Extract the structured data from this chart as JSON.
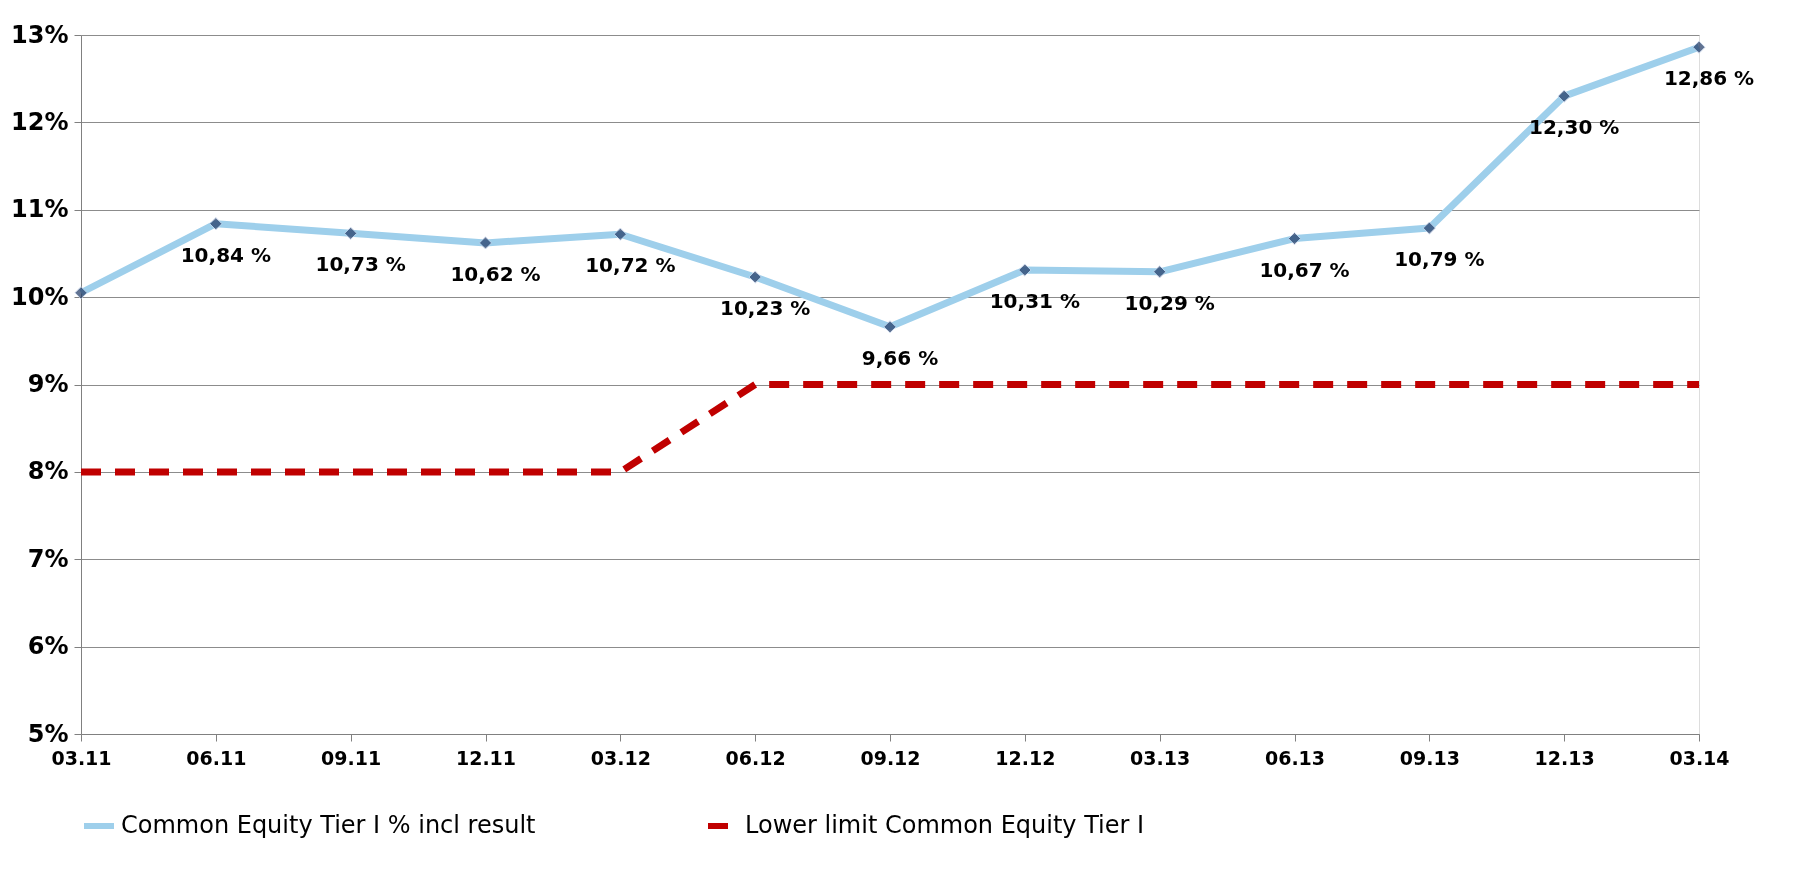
{
  "chart_data": {
    "type": "line",
    "categories": [
      "03.11",
      "06.11",
      "09.11",
      "12.11",
      "03.12",
      "06.12",
      "09.12",
      "12.12",
      "03.13",
      "06.13",
      "09.13",
      "12.13",
      "03.14"
    ],
    "series": [
      {
        "name": "Common Equity Tier I % incl result",
        "color": "#9ecfeb",
        "marker": "diamond",
        "line_style": "solid",
        "values": [
          10.05,
          10.84,
          10.73,
          10.62,
          10.72,
          10.23,
          9.66,
          10.31,
          10.29,
          10.67,
          10.79,
          12.3,
          12.86
        ],
        "value_labels": [
          null,
          "10,84 %",
          "10,73 %",
          "10,62 %",
          "10,72 %",
          "10,23 %",
          "9,66 %",
          "10,31 %",
          "10,29 %",
          "10,67 %",
          "10,79 %",
          "12,30 %",
          "12,86 %"
        ]
      },
      {
        "name": "Lower limit Common Equity Tier I",
        "color": "#c00000",
        "marker": "none",
        "line_style": "dashed",
        "values": [
          8,
          8,
          8,
          8,
          8,
          9,
          9,
          9,
          9,
          9,
          9,
          9,
          9
        ]
      }
    ],
    "ylim": [
      5,
      13
    ],
    "yticks": [
      {
        "value": 5,
        "label": "5%"
      },
      {
        "value": 6,
        "label": "6%"
      },
      {
        "value": 7,
        "label": "7%"
      },
      {
        "value": 8,
        "label": "8%"
      },
      {
        "value": 9,
        "label": "9%"
      },
      {
        "value": 10,
        "label": "10%"
      },
      {
        "value": 11,
        "label": "11%"
      },
      {
        "value": 12,
        "label": "12%"
      },
      {
        "value": 13,
        "label": "13%"
      }
    ],
    "grid": "y",
    "legend": "bottom"
  }
}
